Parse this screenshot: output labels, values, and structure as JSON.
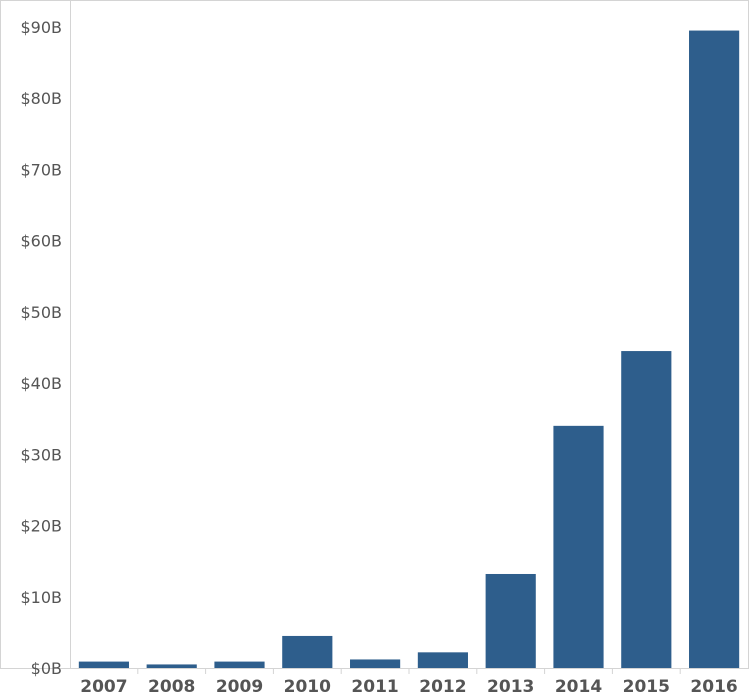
{
  "chart_data": {
    "type": "bar",
    "title": "",
    "xlabel": "",
    "ylabel": "",
    "categories": [
      "2007",
      "2008",
      "2009",
      "2010",
      "2011",
      "2012",
      "2013",
      "2014",
      "2015",
      "2016"
    ],
    "values": [
      0.9,
      0.5,
      0.9,
      4.5,
      1.2,
      2.2,
      13.2,
      34.0,
      44.5,
      89.5
    ],
    "value_unit": "billions of dollars",
    "ylim": [
      0,
      90
    ],
    "yticks": [
      {
        "value": 0,
        "label": "$0B"
      },
      {
        "value": 10,
        "label": "$10B"
      },
      {
        "value": 20,
        "label": "$20B"
      },
      {
        "value": 30,
        "label": "$30B"
      },
      {
        "value": 40,
        "label": "$40B"
      },
      {
        "value": 50,
        "label": "$50B"
      },
      {
        "value": 60,
        "label": "$60B"
      },
      {
        "value": 70,
        "label": "$70B"
      },
      {
        "value": 80,
        "label": "$80B"
      },
      {
        "value": 90,
        "label": "$90B"
      }
    ],
    "grid": false,
    "legend": "none",
    "bar_color": "#2e5e8c"
  }
}
